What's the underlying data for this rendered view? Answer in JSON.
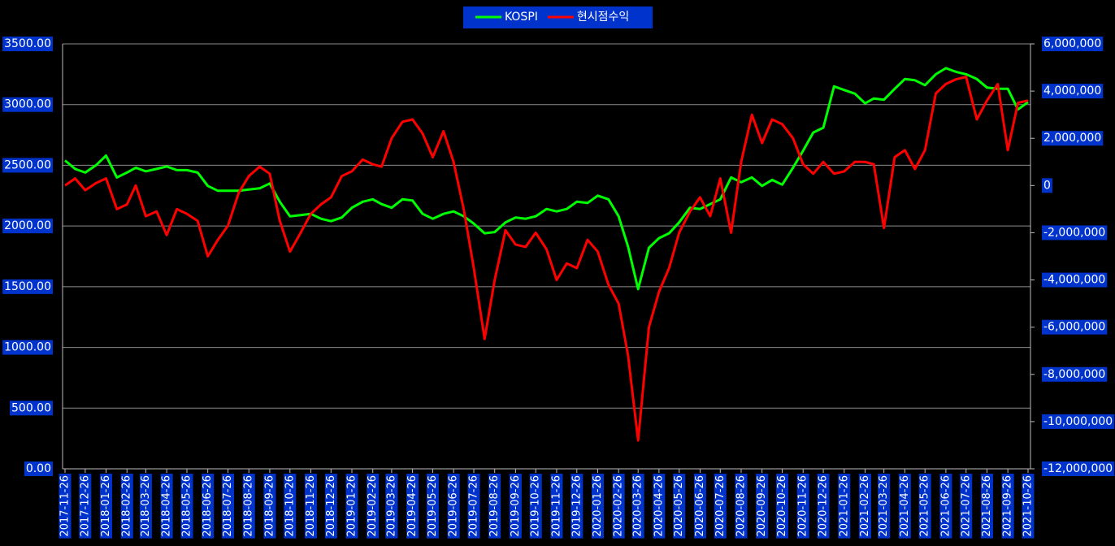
{
  "chart_data": {
    "type": "line",
    "legend": "top",
    "grid": true,
    "x": [
      "2017-11-26",
      "2017-12-11",
      "2017-12-26",
      "2018-01-11",
      "2018-01-26",
      "2018-02-11",
      "2018-02-26",
      "2018-03-11",
      "2018-03-26",
      "2018-04-11",
      "2018-04-26",
      "2018-05-11",
      "2018-05-26",
      "2018-06-11",
      "2018-06-26",
      "2018-07-11",
      "2018-07-26",
      "2018-08-11",
      "2018-08-26",
      "2018-09-11",
      "2018-09-26",
      "2018-10-11",
      "2018-10-26",
      "2018-11-11",
      "2018-11-26",
      "2018-12-11",
      "2018-12-26",
      "2019-01-11",
      "2019-01-26",
      "2019-02-11",
      "2019-02-26",
      "2019-03-11",
      "2019-03-26",
      "2019-04-11",
      "2019-04-26",
      "2019-05-11",
      "2019-05-26",
      "2019-06-11",
      "2019-06-26",
      "2019-07-11",
      "2019-07-26",
      "2019-08-11",
      "2019-08-26",
      "2019-09-11",
      "2019-09-26",
      "2019-10-11",
      "2019-10-26",
      "2019-11-11",
      "2019-11-26",
      "2019-12-11",
      "2019-12-26",
      "2020-01-11",
      "2020-01-26",
      "2020-02-11",
      "2020-02-26",
      "2020-03-11",
      "2020-03-26",
      "2020-04-11",
      "2020-04-26",
      "2020-05-11",
      "2020-05-26",
      "2020-06-11",
      "2020-06-26",
      "2020-07-11",
      "2020-07-26",
      "2020-08-11",
      "2020-08-26",
      "2020-09-11",
      "2020-09-26",
      "2020-10-11",
      "2020-10-26",
      "2020-11-11",
      "2020-11-26",
      "2020-12-11",
      "2020-12-26",
      "2021-01-11",
      "2021-01-26",
      "2021-02-11",
      "2021-02-26",
      "2021-03-11",
      "2021-03-26",
      "2021-04-11",
      "2021-04-26",
      "2021-05-11",
      "2021-05-26",
      "2021-06-11",
      "2021-06-26",
      "2021-07-11",
      "2021-07-26",
      "2021-08-11",
      "2021-08-26",
      "2021-09-11",
      "2021-09-26",
      "2021-10-11",
      "2021-10-26"
    ],
    "xlim": [
      "2017-11-26",
      "2021-10-26"
    ],
    "xticks": [
      "2017-11-26",
      "2017-12-26",
      "2018-01-26",
      "2018-02-26",
      "2018-03-26",
      "2018-04-26",
      "2018-05-26",
      "2018-06-26",
      "2018-07-26",
      "2018-08-26",
      "2018-09-26",
      "2018-10-26",
      "2018-11-26",
      "2018-12-26",
      "2019-01-26",
      "2019-02-26",
      "2019-03-26",
      "2019-04-26",
      "2019-05-26",
      "2019-06-26",
      "2019-07-26",
      "2019-08-26",
      "2019-09-26",
      "2019-10-26",
      "2019-11-26",
      "2019-12-26",
      "2020-01-26",
      "2020-02-26",
      "2020-03-26",
      "2020-04-26",
      "2020-05-26",
      "2020-06-26",
      "2020-07-26",
      "2020-08-26",
      "2020-09-26",
      "2020-10-26",
      "2020-11-26",
      "2020-12-26",
      "2021-01-26",
      "2021-02-26",
      "2021-03-26",
      "2021-04-26",
      "2021-05-26",
      "2021-06-26",
      "2021-07-26",
      "2021-08-26",
      "2021-09-26",
      "2021-10-26"
    ],
    "ylim": [
      0,
      3500
    ],
    "yticks": [
      {
        "value": 0,
        "label": "0.00"
      },
      {
        "value": 500,
        "label": "500.00"
      },
      {
        "value": 1000,
        "label": "1000.00"
      },
      {
        "value": 1500,
        "label": "1500.00"
      },
      {
        "value": 2000,
        "label": "2000.00"
      },
      {
        "value": 2500,
        "label": "2500.00"
      },
      {
        "value": 3000,
        "label": "3000.00"
      },
      {
        "value": 3500,
        "label": "3500.00"
      }
    ],
    "y2lim": [
      -12000000,
      6000000
    ],
    "y2ticks": [
      {
        "value": -12000000,
        "label": "-12,000,000"
      },
      {
        "value": -10000000,
        "label": "-10,000,000"
      },
      {
        "value": -8000000,
        "label": "-8,000,000"
      },
      {
        "value": -6000000,
        "label": "-6,000,000"
      },
      {
        "value": -4000000,
        "label": "-4,000,000"
      },
      {
        "value": -2000000,
        "label": "-2,000,000"
      },
      0,
      {
        "value": 2000000,
        "label": "2,000,000"
      },
      {
        "value": 4000000,
        "label": "4,000,000"
      },
      {
        "value": 6000000,
        "label": "6,000,000"
      }
    ],
    "series": [
      {
        "name": "KOSPI",
        "color": "#00ff00",
        "values": [
          2540,
          2470,
          2440,
          2500,
          2580,
          2400,
          2440,
          2480,
          2450,
          2470,
          2490,
          2460,
          2460,
          2440,
          2330,
          2290,
          2290,
          2290,
          2300,
          2310,
          2350,
          2200,
          2080,
          2090,
          2100,
          2060,
          2040,
          2070,
          2150,
          2200,
          2220,
          2180,
          2150,
          2220,
          2210,
          2100,
          2060,
          2100,
          2120,
          2080,
          2020,
          1940,
          1950,
          2030,
          2070,
          2060,
          2080,
          2140,
          2120,
          2140,
          2200,
          2190,
          2250,
          2220,
          2080,
          1830,
          1480,
          1820,
          1900,
          1940,
          2030,
          2150,
          2140,
          2180,
          2220,
          2400,
          2360,
          2400,
          2330,
          2380,
          2340,
          2480,
          2620,
          2770,
          2810,
          3150,
          3120,
          3090,
          3010,
          3050,
          3040,
          3130,
          3210,
          3200,
          3160,
          3250,
          3300,
          3270,
          3250,
          3210,
          3140,
          3130,
          3130,
          2960,
          3020
        ]
      },
      {
        "name": "현시점수익",
        "color": "#ff0000",
        "axis": "y2",
        "values": [
          0,
          300000,
          -200000,
          100000,
          300000,
          -1000000,
          -800000,
          0,
          -1300000,
          -1100000,
          -2100000,
          -1000000,
          -1200000,
          -1500000,
          -3000000,
          -2300000,
          -1700000,
          -300000,
          400000,
          800000,
          500000,
          -1500000,
          -2800000,
          -2000000,
          -1200000,
          -800000,
          -500000,
          400000,
          600000,
          1100000,
          900000,
          800000,
          2000000,
          2700000,
          2800000,
          2200000,
          1200000,
          2300000,
          1000000,
          -1000000,
          -3500000,
          -6500000,
          -4000000,
          -1900000,
          -2500000,
          -2600000,
          -2000000,
          -2700000,
          -4000000,
          -3300000,
          -3500000,
          -2300000,
          -2800000,
          -4200000,
          -5000000,
          -7200000,
          -10800000,
          -6000000,
          -4500000,
          -3500000,
          -2000000,
          -1100000,
          -500000,
          -1300000,
          300000,
          -2000000,
          1000000,
          3000000,
          1800000,
          2800000,
          2600000,
          2000000,
          900000,
          500000,
          1000000,
          500000,
          600000,
          1000000,
          1000000,
          900000,
          -1800000,
          1200000,
          1500000,
          700000,
          1500000,
          3900000,
          4300000,
          4500000,
          4600000,
          2800000,
          3600000,
          4300000,
          1500000,
          3500000,
          3600000
        ]
      }
    ]
  }
}
